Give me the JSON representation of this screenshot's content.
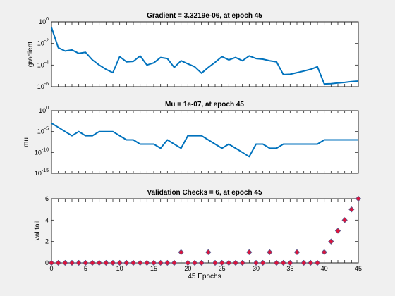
{
  "figure": {
    "background": "#f0f0f0",
    "axes_background": "#ffffff",
    "line_color": "#0072bd",
    "marker_face": "#dc143c",
    "marker_edge": "#5a5a8c"
  },
  "chart_data": [
    {
      "type": "line",
      "title": "Gradient = 3.3219e-06, at epoch 45",
      "xlabel": "",
      "ylabel": "gradient",
      "yscale": "log",
      "xlim": [
        0,
        45
      ],
      "ylim": [
        1e-06,
        1
      ],
      "yticks": [
        {
          "label": "10",
          "exp": "0"
        },
        {
          "label": "10",
          "exp": "-2"
        },
        {
          "label": "10",
          "exp": "-4"
        },
        {
          "label": "10",
          "exp": "-6"
        }
      ],
      "x": [
        0,
        1,
        2,
        3,
        4,
        5,
        6,
        7,
        8,
        9,
        10,
        11,
        12,
        13,
        14,
        15,
        16,
        17,
        18,
        19,
        20,
        21,
        22,
        23,
        24,
        25,
        26,
        27,
        28,
        29,
        30,
        31,
        32,
        33,
        34,
        35,
        36,
        37,
        38,
        39,
        40,
        41,
        42,
        43,
        44,
        45
      ],
      "values": [
        0.3,
        0.004,
        0.002,
        0.0025,
        0.0012,
        0.0015,
        0.0003,
        0.0001,
        4e-05,
        2e-05,
        0.0006,
        0.0002,
        0.00022,
        0.0007,
        0.0001,
        0.00016,
        0.0005,
        0.0004,
        6e-05,
        0.00025,
        0.00013,
        7e-05,
        1.8e-05,
        6e-05,
        0.00018,
        0.0006,
        0.0003,
        0.0005,
        0.00025,
        0.0007,
        0.0004,
        0.00035,
        0.00025,
        0.0002,
        1.3e-05,
        1.4e-05,
        2e-05,
        2.8e-05,
        4e-05,
        7e-05,
        1.8e-06,
        1.9e-06,
        2.2e-06,
        2.5e-06,
        3e-06,
        3.3e-06
      ]
    },
    {
      "type": "line",
      "title": "Mu = 1e-07, at epoch 45",
      "xlabel": "",
      "ylabel": "mu",
      "yscale": "log",
      "xlim": [
        0,
        45
      ],
      "ylim": [
        1e-15,
        1
      ],
      "yticks": [
        {
          "label": "10",
          "exp": "0"
        },
        {
          "label": "10",
          "exp": "-5"
        },
        {
          "label": "10",
          "exp": "-10"
        },
        {
          "label": "10",
          "exp": "-15"
        }
      ],
      "x": [
        0,
        1,
        2,
        3,
        4,
        5,
        6,
        7,
        8,
        9,
        10,
        11,
        12,
        13,
        14,
        15,
        16,
        17,
        18,
        19,
        20,
        21,
        22,
        23,
        24,
        25,
        26,
        27,
        28,
        29,
        30,
        31,
        32,
        33,
        34,
        35,
        36,
        37,
        38,
        39,
        40,
        41,
        42,
        43,
        44,
        45
      ],
      "values": [
        0.001,
        0.0001,
        1e-05,
        1e-06,
        1e-05,
        1e-06,
        1e-06,
        1e-05,
        1e-05,
        1e-05,
        1e-06,
        1e-07,
        1e-07,
        1e-08,
        1e-08,
        1e-08,
        1e-09,
        1e-07,
        1e-08,
        1e-09,
        1e-06,
        1e-06,
        1e-06,
        1e-07,
        1e-08,
        1e-09,
        1e-08,
        1e-09,
        1e-10,
        1e-11,
        1e-08,
        1e-08,
        1e-09,
        1e-09,
        1e-08,
        1e-08,
        1e-08,
        1e-08,
        1e-08,
        1e-08,
        1e-07,
        1e-07,
        1e-07,
        1e-07,
        1e-07,
        1e-07
      ]
    },
    {
      "type": "scatter",
      "title": "Validation Checks = 6, at epoch 45",
      "xlabel": "45 Epochs",
      "ylabel": "val fail",
      "yscale": "linear",
      "xlim": [
        0,
        45
      ],
      "ylim": [
        0,
        6
      ],
      "yticks": [
        {
          "label": "0",
          "exp": ""
        },
        {
          "label": "2",
          "exp": ""
        },
        {
          "label": "4",
          "exp": ""
        },
        {
          "label": "6",
          "exp": ""
        }
      ],
      "xticks": [
        "0",
        "5",
        "10",
        "15",
        "20",
        "25",
        "30",
        "35",
        "40",
        "45"
      ],
      "x": [
        0,
        1,
        2,
        3,
        4,
        5,
        6,
        7,
        8,
        9,
        10,
        11,
        12,
        13,
        14,
        15,
        16,
        17,
        18,
        19,
        20,
        21,
        22,
        23,
        24,
        25,
        26,
        27,
        28,
        29,
        30,
        31,
        32,
        33,
        34,
        35,
        36,
        37,
        38,
        39,
        40,
        41,
        42,
        43,
        44,
        45
      ],
      "values": [
        0,
        0,
        0,
        0,
        0,
        0,
        0,
        0,
        0,
        0,
        0,
        0,
        0,
        0,
        0,
        0,
        0,
        0,
        0,
        1,
        0,
        0,
        0,
        1,
        0,
        0,
        0,
        0,
        0,
        1,
        0,
        0,
        1,
        0,
        0,
        0,
        1,
        0,
        0,
        0,
        1,
        2,
        3,
        4,
        5,
        6
      ]
    }
  ]
}
